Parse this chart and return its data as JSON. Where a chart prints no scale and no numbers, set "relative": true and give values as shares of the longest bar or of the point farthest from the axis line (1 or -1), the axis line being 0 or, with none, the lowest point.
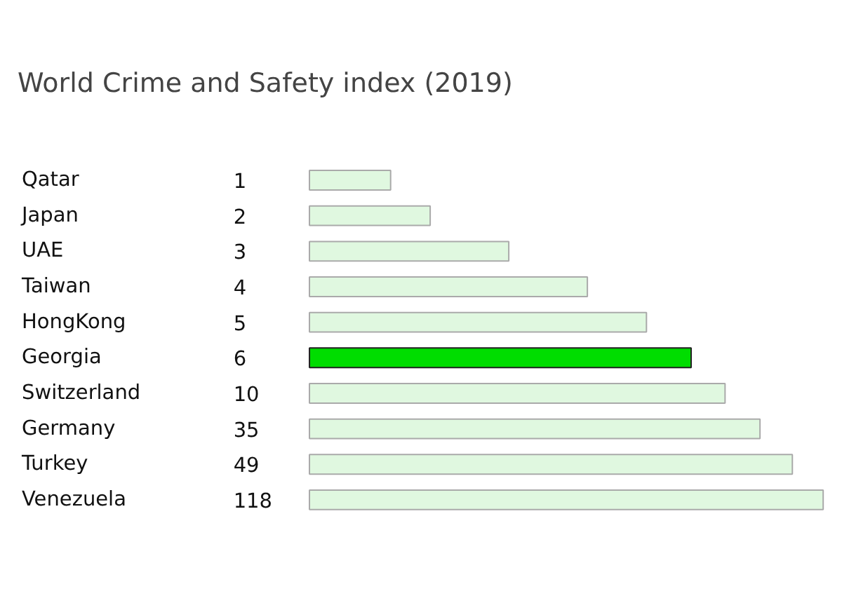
{
  "chart_data": {
    "type": "bar",
    "orientation": "horizontal",
    "relative": true,
    "title": "World Crime and Safety index (2019)",
    "categories": [
      "Qatar",
      "Japan",
      "UAE",
      "Taiwan",
      "HongKong",
      "Georgia",
      "Switzerland",
      "Germany",
      "Turkey",
      "Venezuela"
    ],
    "values": [
      0.158,
      0.235,
      0.388,
      0.541,
      0.656,
      0.743,
      0.809,
      0.877,
      0.94,
      1
    ],
    "annotations": [
      "1",
      "2",
      "3",
      "4",
      "5",
      "6",
      "10",
      "35",
      "49",
      "118"
    ],
    "colors": [
      "#e0f8e0",
      "#e0f8e0",
      "#e0f8e0",
      "#e0f8e0",
      "#e0f8e0",
      "#00dd00",
      "#e0f8e0",
      "#e0f8e0",
      "#e0f8e0",
      "#e0f8e0"
    ],
    "grid": false
  }
}
